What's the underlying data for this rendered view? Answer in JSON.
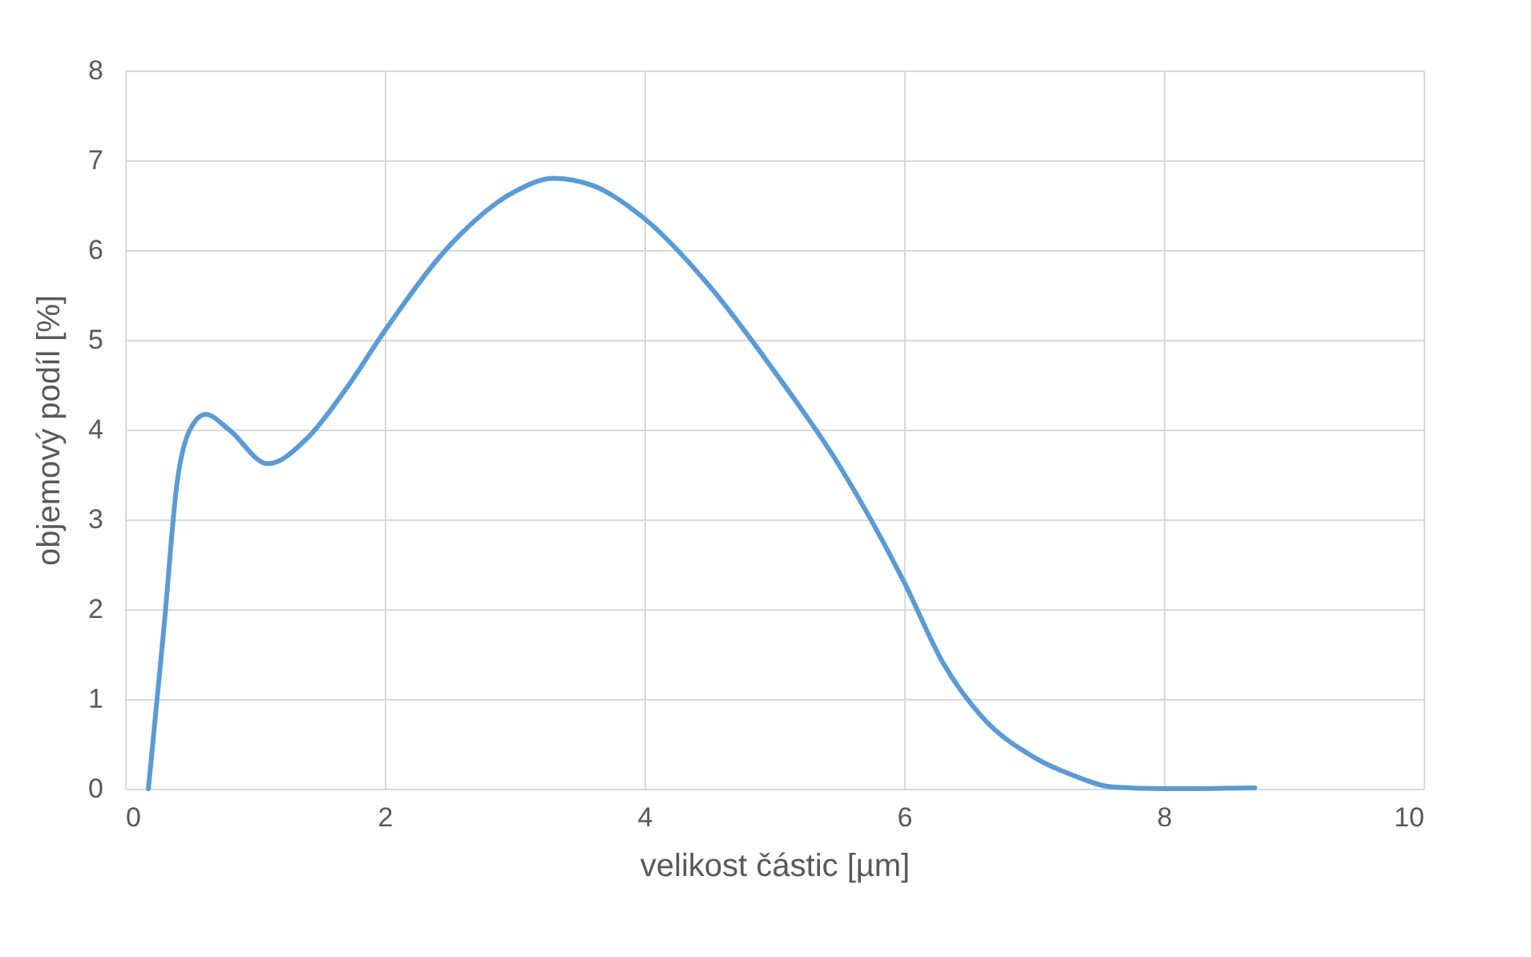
{
  "chart_data": {
    "type": "line",
    "xlabel": "velikost částic [µm]",
    "ylabel": "objemový  podíl [%]",
    "xlim": [
      0,
      10
    ],
    "xticks": [
      0,
      2,
      4,
      6,
      8,
      10
    ],
    "ylim": [
      0,
      8
    ],
    "yticks": [
      0,
      1,
      2,
      3,
      4,
      5,
      6,
      7,
      8
    ],
    "grid": true,
    "marker": "none",
    "line_style": "solid",
    "series": [
      {
        "color": "#5b9bd5",
        "x": [
          0.18,
          0.3,
          0.4,
          0.5,
          0.62,
          0.8,
          1.1,
          1.4,
          1.7,
          2.0,
          2.5,
          3.0,
          3.3,
          3.6,
          4.0,
          4.5,
          5.0,
          5.5,
          6.0,
          6.3,
          6.6,
          7.0,
          7.3,
          7.6,
          8.0,
          8.7
        ],
        "values": [
          0,
          1.8,
          3.4,
          4.0,
          4.17,
          4.0,
          3.62,
          3.9,
          4.45,
          5.1,
          6.05,
          6.65,
          6.8,
          6.72,
          6.35,
          5.6,
          4.65,
          3.6,
          2.3,
          1.4,
          0.8,
          0.35,
          0.15,
          0.02,
          0,
          0.01
        ]
      }
    ]
  }
}
